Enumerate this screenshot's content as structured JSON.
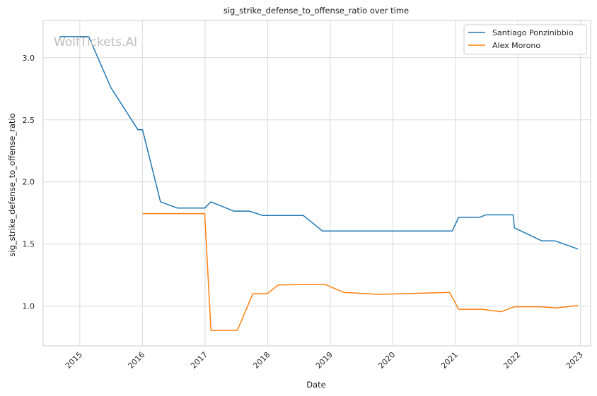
{
  "chart_data": {
    "type": "line",
    "title": "sig_strike_defense_to_offense_ratio over time",
    "xlabel": "Date",
    "ylabel": "sig_strike_defense_to_offense_ratio",
    "watermark": "WolfTickets.AI",
    "x_ticks": [
      "2015",
      "2016",
      "2017",
      "2018",
      "2019",
      "2020",
      "2021",
      "2022",
      "2023"
    ],
    "y_ticks": [
      "1.0",
      "1.5",
      "2.0",
      "2.5",
      "3.0"
    ],
    "xlim": [
      "2014-06-01",
      "2023-03-01"
    ],
    "ylim": [
      0.68,
      3.3
    ],
    "grid": true,
    "legend_position": "top-right",
    "series": [
      {
        "name": "Santiago Ponzinibbio",
        "color": "#1f77b4",
        "points": [
          [
            "2014-09-05",
            3.17
          ],
          [
            "2015-02-22",
            3.17
          ],
          [
            "2015-07-01",
            2.76
          ],
          [
            "2015-12-06",
            2.42
          ],
          [
            "2016-01-02",
            2.42
          ],
          [
            "2016-04-16",
            1.84
          ],
          [
            "2016-07-23",
            1.79
          ],
          [
            "2016-12-30",
            1.79
          ],
          [
            "2017-02-04",
            1.84
          ],
          [
            "2017-06-17",
            1.765
          ],
          [
            "2017-09-16",
            1.765
          ],
          [
            "2017-12-02",
            1.73
          ],
          [
            "2018-07-28",
            1.73
          ],
          [
            "2018-11-17",
            1.605
          ],
          [
            "2020-12-13",
            1.605
          ],
          [
            "2021-01-20",
            1.715
          ],
          [
            "2021-05-22",
            1.715
          ],
          [
            "2021-06-26",
            1.735
          ],
          [
            "2021-12-04",
            1.735
          ],
          [
            "2021-12-11",
            1.63
          ],
          [
            "2022-05-21",
            1.525
          ],
          [
            "2022-08-06",
            1.525
          ],
          [
            "2022-12-17",
            1.46
          ]
        ]
      },
      {
        "name": "Alex Morono",
        "color": "#ff7f0e",
        "points": [
          [
            "2016-01-02",
            1.745
          ],
          [
            "2016-12-30",
            1.745
          ],
          [
            "2017-02-04",
            0.805
          ],
          [
            "2017-07-08",
            0.805
          ],
          [
            "2017-10-07",
            1.1
          ],
          [
            "2017-12-30",
            1.1
          ],
          [
            "2018-03-03",
            1.17
          ],
          [
            "2018-09-08",
            1.175
          ],
          [
            "2018-12-01",
            1.175
          ],
          [
            "2019-03-23",
            1.11
          ],
          [
            "2019-10-12",
            1.095
          ],
          [
            "2020-11-28",
            1.11
          ],
          [
            "2021-01-20",
            0.975
          ],
          [
            "2021-06-05",
            0.975
          ],
          [
            "2021-09-25",
            0.955
          ],
          [
            "2021-12-11",
            0.995
          ],
          [
            "2022-05-14",
            0.995
          ],
          [
            "2022-08-13",
            0.985
          ],
          [
            "2022-12-17",
            1.005
          ]
        ]
      }
    ]
  }
}
